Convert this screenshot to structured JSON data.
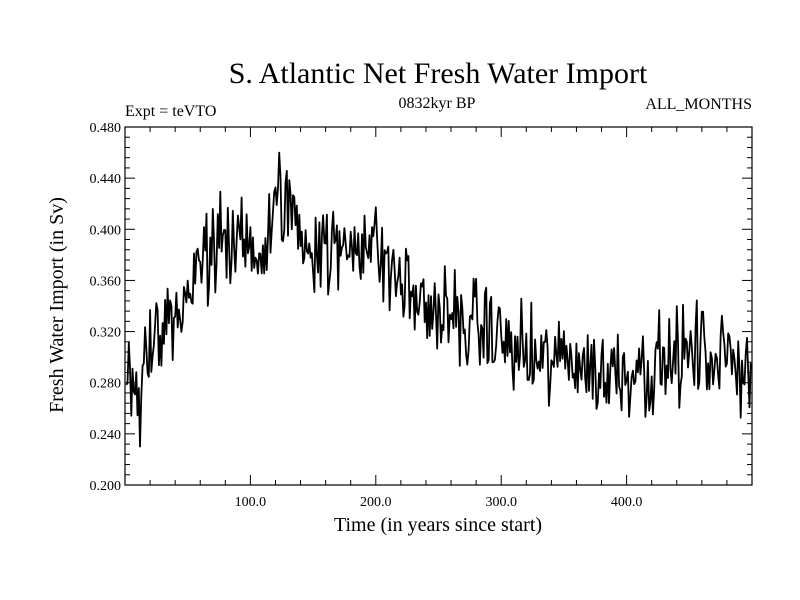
{
  "chart_data": {
    "type": "line",
    "title": "S. Atlantic Net Fresh Water Import",
    "subtitle_left": "Expt = teVTO",
    "subtitle_center": "0832kyr BP",
    "subtitle_right": "ALL_MONTHS",
    "xlabel": "Time (in years since start)",
    "ylabel": "Fresh Water Import (in Sv)",
    "xlim": [
      0,
      500
    ],
    "ylim": [
      0.2,
      0.48
    ],
    "x_major_ticks": [
      100,
      200,
      300,
      400
    ],
    "x_tick_labels": [
      "100.0",
      "200.0",
      "300.0",
      "400.0"
    ],
    "y_major_ticks": [
      0.2,
      0.24,
      0.28,
      0.32,
      0.36,
      0.4,
      0.44,
      0.48
    ],
    "y_tick_labels": [
      "0.200",
      "0.240",
      "0.280",
      "0.320",
      "0.360",
      "0.400",
      "0.440",
      "0.480"
    ],
    "grid": false,
    "series": [
      {
        "name": "Net fresh water import",
        "color": "#000000",
        "x_start": 1,
        "x_step": 1,
        "anchors": [
          [
            0,
            0.29
          ],
          [
            10,
            0.28
          ],
          [
            20,
            0.31
          ],
          [
            30,
            0.33
          ],
          [
            40,
            0.33
          ],
          [
            50,
            0.345
          ],
          [
            60,
            0.37
          ],
          [
            70,
            0.385
          ],
          [
            80,
            0.39
          ],
          [
            90,
            0.39
          ],
          [
            100,
            0.385
          ],
          [
            110,
            0.38
          ],
          [
            120,
            0.41
          ],
          [
            130,
            0.425
          ],
          [
            140,
            0.395
          ],
          [
            150,
            0.39
          ],
          [
            160,
            0.385
          ],
          [
            170,
            0.38
          ],
          [
            180,
            0.39
          ],
          [
            190,
            0.395
          ],
          [
            200,
            0.385
          ],
          [
            210,
            0.37
          ],
          [
            220,
            0.36
          ],
          [
            230,
            0.345
          ],
          [
            240,
            0.34
          ],
          [
            250,
            0.335
          ],
          [
            260,
            0.33
          ],
          [
            270,
            0.325
          ],
          [
            280,
            0.325
          ],
          [
            290,
            0.32
          ],
          [
            300,
            0.315
          ],
          [
            310,
            0.305
          ],
          [
            320,
            0.3
          ],
          [
            330,
            0.295
          ],
          [
            340,
            0.295
          ],
          [
            350,
            0.3
          ],
          [
            360,
            0.3
          ],
          [
            370,
            0.29
          ],
          [
            380,
            0.285
          ],
          [
            390,
            0.29
          ],
          [
            400,
            0.29
          ],
          [
            410,
            0.295
          ],
          [
            420,
            0.29
          ],
          [
            430,
            0.295
          ],
          [
            440,
            0.3
          ],
          [
            450,
            0.3
          ],
          [
            460,
            0.305
          ],
          [
            470,
            0.3
          ],
          [
            480,
            0.3
          ],
          [
            490,
            0.295
          ],
          [
            500,
            0.295
          ]
        ],
        "noise_amplitude": 0.018,
        "n_points": 499,
        "max": 0.46,
        "max_x": 123,
        "min": 0.23,
        "min_x": 12
      }
    ]
  }
}
